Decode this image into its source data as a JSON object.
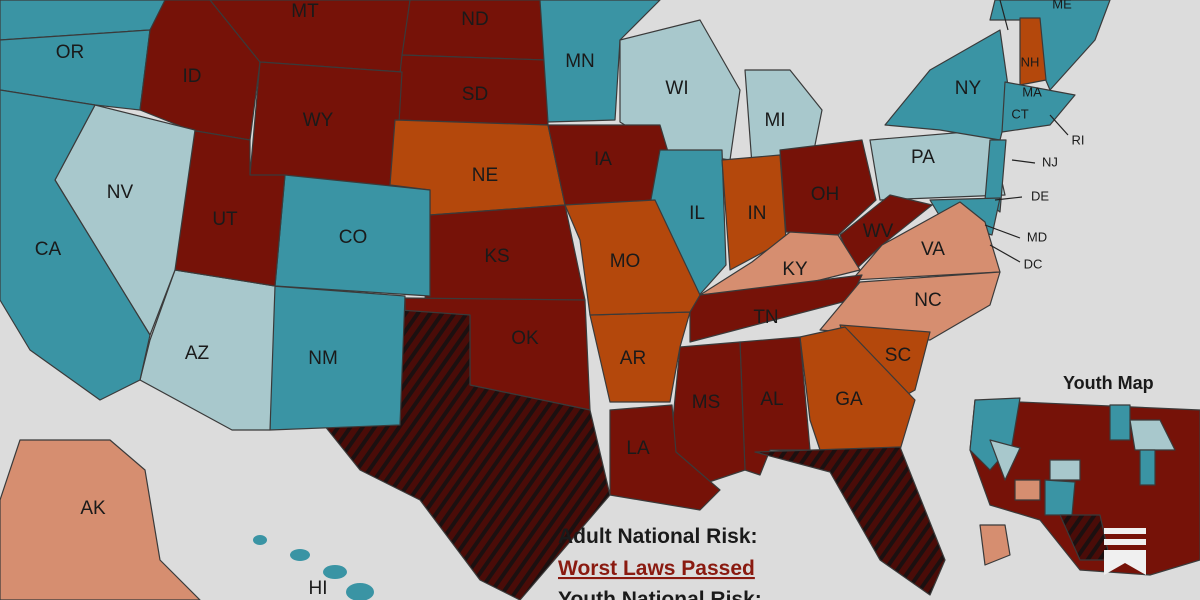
{
  "map": {
    "labels": [
      "OR",
      "MT",
      "ND",
      "ID",
      "MN",
      "ME",
      "WI",
      "NY",
      "SD",
      "WY",
      "MI",
      "NH",
      "MA",
      "CT",
      "RI",
      "PA",
      "NJ",
      "NV",
      "NE",
      "IA",
      "OH",
      "IL",
      "IN",
      "DE",
      "UT",
      "CO",
      "CA",
      "WV",
      "VA",
      "MD",
      "KS",
      "MO",
      "KY",
      "DC",
      "NC",
      "TN",
      "OK",
      "AZ",
      "NM",
      "AR",
      "SC",
      "MS",
      "AL",
      "GA",
      "LA",
      "AK",
      "HI"
    ]
  },
  "inset": {
    "title": "Youth Map"
  },
  "legend": {
    "adult_title": "Adult National Risk:",
    "adult_value": "Worst Laws Passed",
    "youth_title": "Youth National Risk:"
  }
}
